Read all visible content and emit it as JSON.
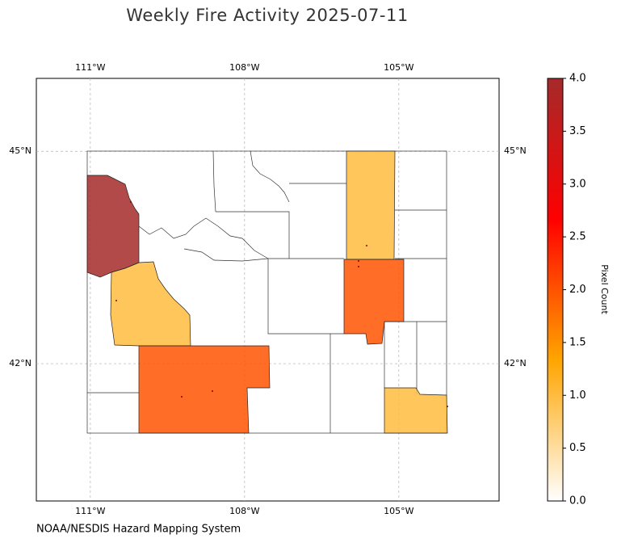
{
  "chart_data": {
    "type": "choropleth",
    "title": "Weekly Fire Activity 2025-07-11",
    "xlim": [
      -112.05,
      -103.05
    ],
    "ylim": [
      40.06,
      46.03
    ],
    "xticks": [
      {
        "value": -111,
        "label": "111°W"
      },
      {
        "value": -108,
        "label": "108°W"
      },
      {
        "value": -105,
        "label": "105°W"
      }
    ],
    "yticks": [
      {
        "value": 42,
        "label": "42°N"
      },
      {
        "value": 45,
        "label": "45°N"
      }
    ],
    "grid": true,
    "values": [
      4,
      1,
      2,
      1,
      2,
      1
    ],
    "colormap": [
      "#ffffff",
      "#ffa500",
      "#ff0000",
      "#a52a2a"
    ],
    "colorbar": {
      "label": "Pixel Count",
      "lim": [
        0,
        4
      ],
      "ticks": [
        {
          "value": 0,
          "label": "0.0"
        },
        {
          "value": 0.5,
          "label": "0.5"
        },
        {
          "value": 1,
          "label": "1.0"
        },
        {
          "value": 1.5,
          "label": "1.5"
        },
        {
          "value": 2,
          "label": "2.0"
        },
        {
          "value": 2.5,
          "label": "2.5"
        },
        {
          "value": 3,
          "label": "3.0"
        },
        {
          "value": 3.5,
          "label": "3.5"
        },
        {
          "value": 4,
          "label": "4.0"
        }
      ]
    },
    "source": "NOAA/NESDIS Hazard Mapping System"
  }
}
